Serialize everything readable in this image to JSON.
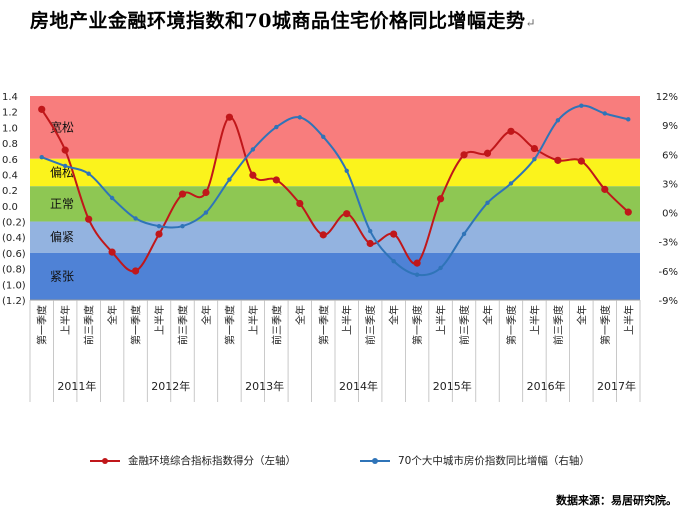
{
  "title": "房地产业金融环境指数和70城商品住宅价格同比增幅走势",
  "title_suffix": "↵",
  "source": "数据来源：易居研究院。",
  "colors": {
    "band_loose": "#f87d7d",
    "band_somewhat_loose": "#fbf31c",
    "band_normal": "#8ec753",
    "band_somewhat_tight": "#93b3e0",
    "band_tight": "#4f82d6",
    "series_left": "#c0171a",
    "series_right": "#2f74b8"
  },
  "chart_data": {
    "type": "line",
    "bands": [
      {
        "label": "宽松",
        "from": 0.6,
        "to": 1.4,
        "color": "#f87d7d"
      },
      {
        "label": "偏松",
        "from": 0.25,
        "to": 0.6,
        "color": "#fbf31c"
      },
      {
        "label": "正常",
        "from": -0.2,
        "to": 0.25,
        "color": "#8ec753"
      },
      {
        "label": "偏紧",
        "from": -0.6,
        "to": -0.2,
        "color": "#93b3e0"
      },
      {
        "label": "紧张",
        "from": -1.2,
        "to": -0.6,
        "color": "#4f82d6"
      }
    ],
    "categories": [
      "第一季度",
      "上半年",
      "前三季度",
      "全年",
      "第一季度",
      "上半年",
      "前三季度",
      "全年",
      "第一季度",
      "上半年",
      "前三季度",
      "全年",
      "第一季度",
      "上半年",
      "前三季度",
      "全年",
      "第一季度",
      "上半年",
      "前三季度",
      "全年",
      "第一季度",
      "上半年",
      "前三季度",
      "全年",
      "第一季度",
      "上半年"
    ],
    "years": [
      {
        "label": "2011年",
        "start": 0,
        "count": 4
      },
      {
        "label": "2012年",
        "start": 4,
        "count": 4
      },
      {
        "label": "2013年",
        "start": 8,
        "count": 4
      },
      {
        "label": "2014年",
        "start": 12,
        "count": 4
      },
      {
        "label": "2015年",
        "start": 16,
        "count": 4
      },
      {
        "label": "2016年",
        "start": 20,
        "count": 4
      },
      {
        "label": "2017年",
        "start": 24,
        "count": 2
      }
    ],
    "y_left": {
      "ticks": [
        "1.4",
        "1.2",
        "1.0",
        "0.8",
        "0.6",
        "0.4",
        "0.2",
        "0.0",
        "(0.2)",
        "(0.4)",
        "(0.6)",
        "(0.8)",
        "(1.0)",
        "(1.2)"
      ],
      "min": -1.2,
      "max": 1.4
    },
    "y_right": {
      "ticks": [
        "12%",
        "9%",
        "6%",
        "3%",
        "0%",
        "-3%",
        "-6%",
        "-9%"
      ],
      "min": -9,
      "max": 12
    },
    "series": [
      {
        "name": "金融环境综合指标指数得分（左轴）",
        "axis": "left",
        "values": [
          1.23,
          0.71,
          -0.17,
          -0.59,
          -0.83,
          -0.36,
          0.15,
          0.17,
          1.13,
          0.39,
          0.33,
          0.03,
          -0.37,
          -0.1,
          -0.48,
          -0.36,
          -0.73,
          0.09,
          0.65,
          0.67,
          0.95,
          0.73,
          0.58,
          0.57,
          0.21,
          -0.08
        ]
      },
      {
        "name": "70个大中城市房价指数同比增幅（右轴）",
        "axis": "right",
        "values": [
          5.7,
          4.8,
          4.0,
          1.5,
          -0.6,
          -1.4,
          -1.4,
          0.0,
          3.4,
          6.5,
          8.8,
          9.8,
          7.8,
          4.3,
          -1.9,
          -5.0,
          -6.4,
          -5.7,
          -2.2,
          1.0,
          3.0,
          5.5,
          9.5,
          11.0,
          10.2,
          9.6
        ]
      }
    ]
  }
}
